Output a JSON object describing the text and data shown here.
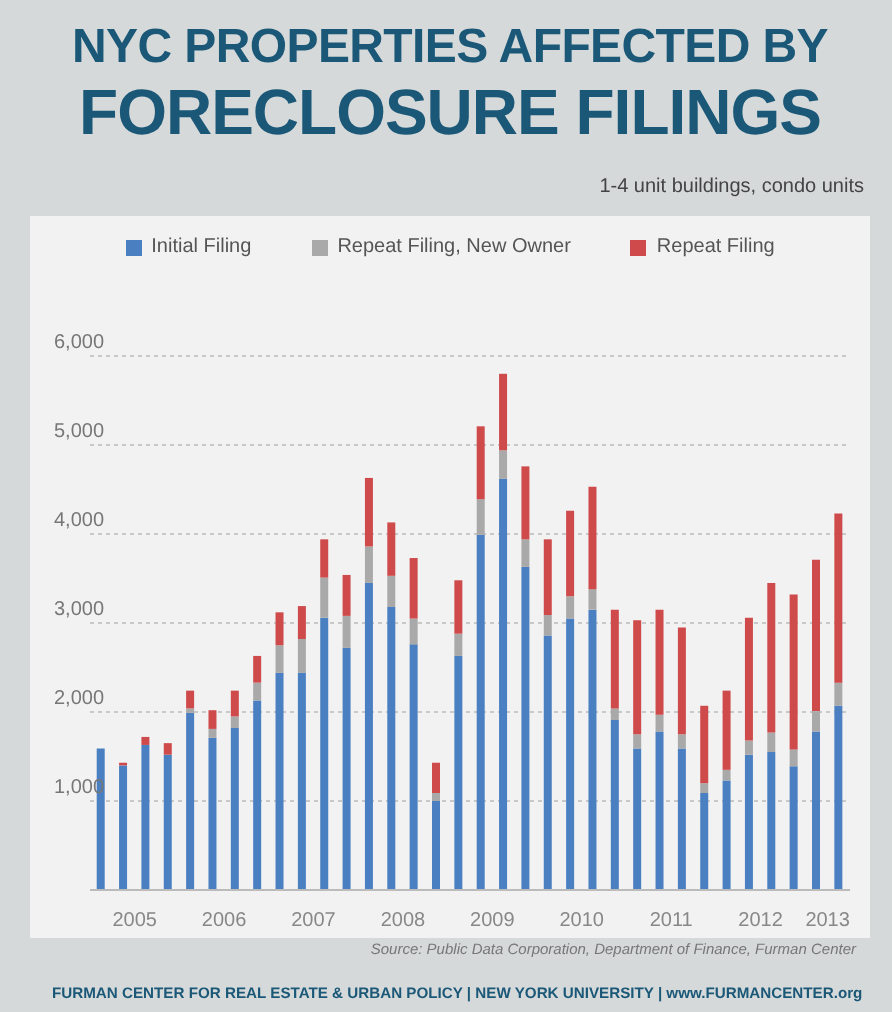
{
  "chart_data": {
    "type": "bar",
    "title": "NYC PROPERTIES AFFECTED BY\nFORECLOSURE FILINGS",
    "subtitle": "1-4 unit buildings, condo units",
    "categories": [
      null,
      "2005",
      null,
      null,
      null,
      "2006",
      null,
      null,
      null,
      "2007",
      null,
      null,
      null,
      "2008",
      null,
      null,
      null,
      "2009",
      null,
      null,
      null,
      "2010",
      null,
      null,
      null,
      "2011",
      null,
      null,
      null,
      "2012",
      null,
      null,
      "2013",
      null
    ],
    "stacked": true,
    "series": [
      {
        "name": "Initial Filing",
        "color": "#4a7fc1",
        "values": [
          1590,
          1400,
          1630,
          1520,
          1990,
          1710,
          1820,
          2130,
          2440,
          2440,
          3060,
          2720,
          3450,
          3180,
          2760,
          1000,
          2630,
          3990,
          4620,
          3630,
          2860,
          3050,
          3150,
          1910,
          1590,
          1780,
          1590,
          1090,
          1230,
          1520,
          1550,
          1390,
          1780,
          2070
        ]
      },
      {
        "name": "Repeat Filing, New Owner",
        "color": "#a9a9a9",
        "values": [
          0,
          0,
          0,
          0,
          50,
          100,
          130,
          200,
          310,
          380,
          450,
          360,
          410,
          350,
          290,
          90,
          250,
          400,
          320,
          310,
          230,
          250,
          230,
          130,
          160,
          190,
          160,
          110,
          120,
          160,
          220,
          190,
          230,
          260
        ]
      },
      {
        "name": "Repeat Filing",
        "color": "#cf4a4a",
        "values": [
          0,
          30,
          90,
          130,
          200,
          210,
          290,
          300,
          370,
          370,
          430,
          460,
          770,
          600,
          680,
          340,
          600,
          820,
          860,
          820,
          850,
          960,
          1150,
          1110,
          1280,
          1180,
          1200,
          870,
          890,
          1380,
          1680,
          1740,
          1700,
          1900
        ]
      }
    ],
    "ylim": [
      0,
      6000
    ],
    "yticks": [
      {
        "value": 0,
        "label": null
      },
      {
        "value": 1000,
        "label": "1,000"
      },
      {
        "value": 2000,
        "label": "2,000"
      },
      {
        "value": 3000,
        "label": "3,000"
      },
      {
        "value": 4000,
        "label": "4,000"
      },
      {
        "value": 5000,
        "label": "5,000"
      },
      {
        "value": 6000,
        "label": "6,000"
      }
    ],
    "grid": "y",
    "legend": "top",
    "annotations": [
      "Source: Public Data Corporation, Department of Finance, Furman Center",
      "FURMAN CENTER FOR REAL ESTATE & URBAN POLICY | NEW YORK UNIVERSITY | www.FURMANCENTER.org"
    ]
  }
}
